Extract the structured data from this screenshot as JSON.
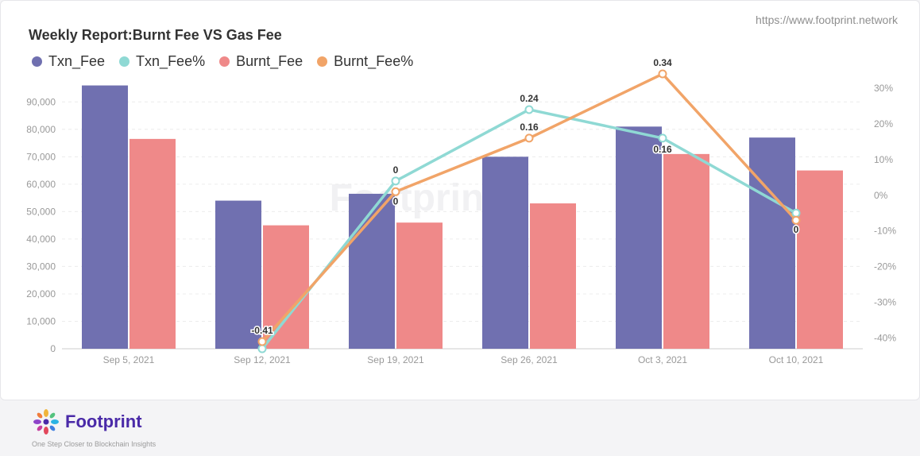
{
  "header": {
    "title": "Weekly Report:Burnt Fee VS Gas Fee",
    "url": "https://www.footprint.network"
  },
  "brand": {
    "name": "Footprint",
    "tagline": "One Step Closer to Blockchain Insights",
    "watermark": "Footprint"
  },
  "colors": {
    "txn_fee": "#7070b0",
    "txn_fee_pct": "#8fd9d4",
    "burnt_fee": "#ef8989",
    "burnt_fee_pct": "#f1a468"
  },
  "chart_data": {
    "type": "bar",
    "title": "Weekly Report:Burnt Fee VS Gas Fee",
    "categories": [
      "Sep 5, 2021",
      "Sep 12, 2021",
      "Sep 19, 2021",
      "Sep 26, 2021",
      "Oct 3, 2021",
      "Oct 10, 2021"
    ],
    "y_left": {
      "range": [
        0,
        95000
      ],
      "ticks": [
        "0",
        "10,000",
        "20,000",
        "30,000",
        "40,000",
        "50,000",
        "60,000",
        "70,000",
        "80,000",
        "90,000"
      ],
      "tick_values": [
        0,
        10000,
        20000,
        30000,
        40000,
        50000,
        60000,
        70000,
        80000,
        90000
      ]
    },
    "y_right": {
      "range": [
        -0.43,
        0.3
      ],
      "ticks": [
        "-40%",
        "-30%",
        "-20%",
        "-10%",
        "0%",
        "10%",
        "20%",
        "30%"
      ],
      "tick_values": [
        -0.4,
        -0.3,
        -0.2,
        -0.1,
        0,
        0.1,
        0.2,
        0.3
      ]
    },
    "grid": true,
    "legend_position": "top-left",
    "series": [
      {
        "name": "Txn_Fee",
        "type": "bar",
        "axis": "left",
        "values": [
          96000,
          54000,
          56500,
          70000,
          81000,
          77000
        ]
      },
      {
        "name": "Burnt_Fee",
        "type": "bar",
        "axis": "left",
        "values": [
          76500,
          45000,
          46000,
          53000,
          71000,
          65000
        ]
      },
      {
        "name": "Txn_Fee%",
        "type": "line",
        "axis": "right",
        "values": [
          null,
          -0.43,
          0.04,
          0.24,
          0.16,
          -0.05
        ],
        "labels": [
          null,
          null,
          "0",
          "0.24",
          "0.16",
          null
        ]
      },
      {
        "name": "Burnt_Fee%",
        "type": "line",
        "axis": "right",
        "values": [
          null,
          -0.41,
          0.01,
          0.16,
          0.34,
          -0.07
        ],
        "labels": [
          null,
          "-0.41",
          "0",
          "0.16",
          "0.34",
          "0"
        ]
      }
    ]
  }
}
